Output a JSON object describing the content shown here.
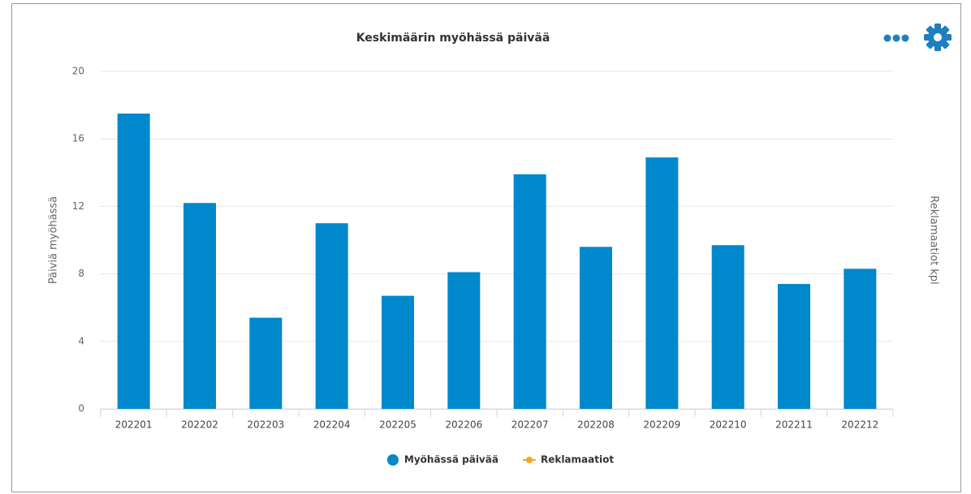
{
  "chart_data": {
    "type": "bar",
    "title": "Keskimäärin myöhässä päivää",
    "y_label": "Päiviä myöhässä",
    "y2_label": "Reklamaatiot kpl",
    "categories": [
      "202201",
      "202202",
      "202203",
      "202204",
      "202205",
      "202206",
      "202207",
      "202208",
      "202209",
      "202210",
      "202211",
      "202212"
    ],
    "series": [
      {
        "name": "Myöhässä päivää",
        "color": "#0088cc",
        "type": "bar",
        "values": [
          17.5,
          12.2,
          5.4,
          11.0,
          6.7,
          8.1,
          13.9,
          9.6,
          14.9,
          9.7,
          7.4,
          8.3
        ]
      },
      {
        "name": "Reklamaatiot",
        "color": "#f5a623",
        "type": "line",
        "axis": "y2",
        "values": [
          null,
          null,
          null,
          null,
          null,
          null,
          null,
          null,
          null,
          null,
          null,
          null
        ]
      }
    ],
    "ylim": [
      0,
      20
    ],
    "yticks": [
      0,
      4,
      8,
      12,
      16,
      20
    ],
    "grid": true
  }
}
